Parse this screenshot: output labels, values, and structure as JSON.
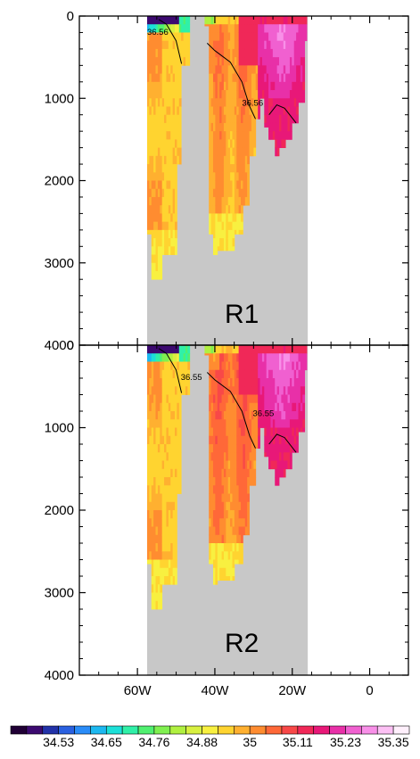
{
  "chart_data": {
    "type": "heatmap",
    "x_axis": {
      "range": [
        75,
        -10
      ],
      "ticks": [
        60,
        40,
        20,
        0
      ],
      "tick_labels": [
        "60W",
        "40W",
        "20W",
        "0"
      ]
    },
    "y_axis": {
      "range": [
        0,
        4000
      ],
      "inverted": true,
      "ticks": [
        0,
        1000,
        2000,
        3000,
        4000
      ],
      "tick_labels": [
        "0",
        "1000",
        "2000",
        "3000",
        "4000"
      ]
    },
    "panels": [
      {
        "label": "R1",
        "contour_value": 36.56,
        "contour_labels": [
          "36.56",
          "36.56"
        ]
      },
      {
        "label": "R2",
        "contour_value": 36.55,
        "contour_labels": [
          "36.55",
          "36.55"
        ]
      }
    ],
    "section_lon_range": [
      57.5,
      16
    ],
    "land_color": "#c8c8c8",
    "colorbar": {
      "labels": [
        "34.53",
        "34.65",
        "34.76",
        "34.88",
        "35",
        "35.11",
        "35.23",
        "35.35"
      ],
      "colors": [
        "#200035",
        "#3c0a70",
        "#2232a8",
        "#2a60e0",
        "#2a8cf8",
        "#1cb8f0",
        "#1ce0d8",
        "#30f0a8",
        "#50f070",
        "#80f050",
        "#b0f040",
        "#d8f040",
        "#f8f040",
        "#ffd430",
        "#ffb030",
        "#ff8c30",
        "#ff6838",
        "#f84848",
        "#f02858",
        "#e81878",
        "#e830a8",
        "#f060d0",
        "#f890e8",
        "#fcc0f4",
        "#fff0fc"
      ]
    }
  }
}
